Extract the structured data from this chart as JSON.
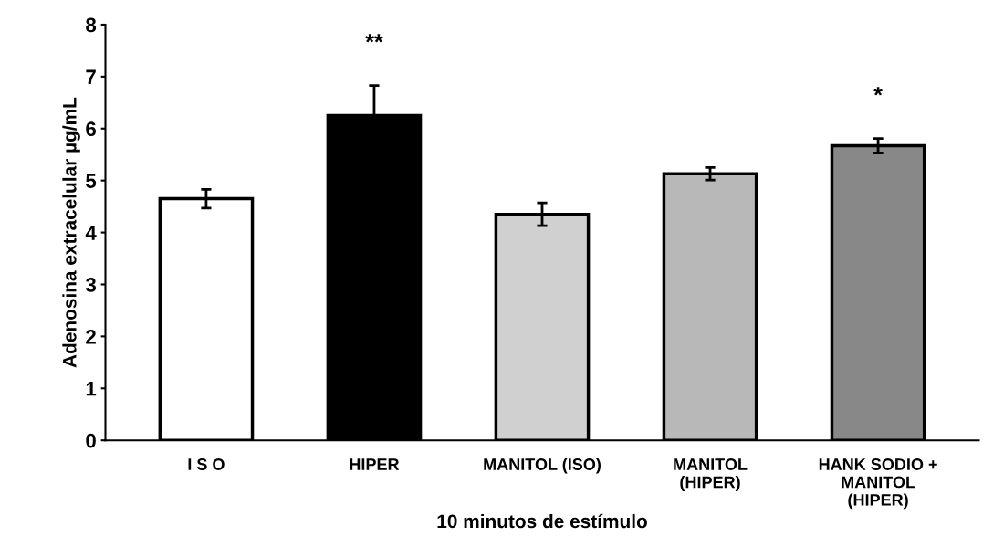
{
  "chart_data": {
    "type": "bar",
    "xlabel": "10 minutos de estímulo",
    "ylabel": "Adenosina extracelular µg/mL",
    "categories": [
      "I S O",
      "HIPER",
      "MANITOL (ISO)",
      "MANITOL\n(HIPER)",
      "HANK SODIO +\nMANITOL\n(HIPER)"
    ],
    "values": [
      4.65,
      6.25,
      4.35,
      5.13,
      5.67
    ],
    "errors": [
      0.18,
      0.58,
      0.22,
      0.12,
      0.14
    ],
    "colors": [
      "#ffffff",
      "#000000",
      "#d0d0d0",
      "#b8b8b8",
      "#888888"
    ],
    "ylim": [
      0,
      8
    ],
    "yticks": [
      0,
      1,
      2,
      3,
      4,
      5,
      6,
      7,
      8
    ],
    "annotations": [
      "**",
      "*"
    ],
    "grid": false,
    "legend": false
  }
}
